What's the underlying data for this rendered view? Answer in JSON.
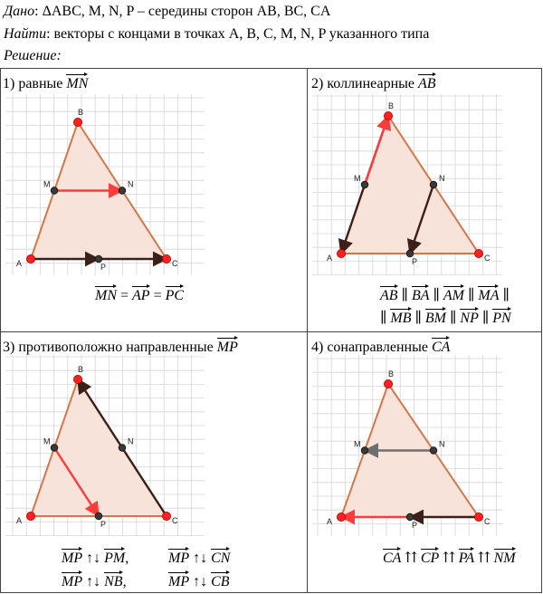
{
  "header": {
    "given_label": "Дано",
    "given_text": ": ΔABC, M, N, P – середины сторон AB, BC, CA",
    "find_label": "Найти",
    "find_text": ":  векторы с концами в точках A, B, C, M, N, P  указанного типа",
    "solution_label": "Решение",
    "solution_colon": ":"
  },
  "cells": [
    {
      "title_prefix": "1) равные ",
      "title_vec": "MN",
      "formula_parts": [
        "MN",
        " = ",
        "AP",
        " = ",
        "PC"
      ]
    },
    {
      "title_prefix": "2) коллинеарные ",
      "title_vec": "AB",
      "formula_line1": [
        "AB",
        " ∥ ",
        "BA",
        " ∥ ",
        "AM",
        " ∥ ",
        "MA",
        " ∥"
      ],
      "formula_line2": [
        "∥ ",
        "MB",
        " ∥ ",
        "BM",
        " ∥ ",
        "NP",
        " ∥ ",
        "PN"
      ]
    },
    {
      "title_prefix": "3) противоположно направленные ",
      "title_vec": "MP",
      "formula_line1": [
        "MP",
        " ↑↓ ",
        "PM",
        ",",
        "MP",
        " ↑↓ ",
        "CN"
      ],
      "formula_line2": [
        "MP",
        " ↑↓ ",
        "NB",
        ",",
        "MP",
        " ↑↓ ",
        "CB"
      ]
    },
    {
      "title_prefix": "4) сонаправленные ",
      "title_vec": "CA",
      "formula_parts": [
        "CA",
        " ⇈ ",
        "CP",
        " ⇈ ",
        "PA",
        " ⇈ ",
        "NM"
      ]
    }
  ],
  "points": {
    "A": "A",
    "B": "B",
    "C": "C",
    "M": "M",
    "N": "N",
    "P": "P"
  },
  "colors": {
    "triangle_edge": "#d2774a",
    "triangle_fill": "#f8e3da",
    "grid": "#d6d6d6",
    "red_point": "#ff2020",
    "dark_point": "#3a3a3a",
    "red_vector": "#ff3b3b",
    "dark_vector": "#3d1f1a",
    "gray_vector": "#6e6e6e"
  }
}
